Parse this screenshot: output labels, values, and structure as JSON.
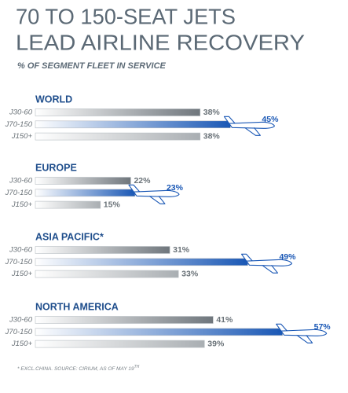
{
  "title": [
    "70 TO 150-SEAT JETS",
    "LEAD AIRLINE RECOVERY"
  ],
  "subtitle": "% OF SEGMENT FLEET IN SERVICE",
  "footnote": "* EXCL.CHINA. SOURCE: CIRIUM, AS OF MAY 19",
  "footnote_sup": "TH",
  "chart_data": [
    {
      "type": "bar",
      "title": "WORLD",
      "categories": [
        "J30-60",
        "J70-150",
        "J150+"
      ],
      "values": [
        38,
        45,
        38
      ],
      "value_labels": [
        "38%",
        "45%",
        "38%"
      ],
      "colors": [
        "#6f767c",
        "#1957b5",
        "#a9aeb2"
      ]
    },
    {
      "type": "bar",
      "title": "EUROPE",
      "categories": [
        "J30-60",
        "J70-150",
        "J150+"
      ],
      "values": [
        22,
        23,
        15
      ],
      "value_labels": [
        "22%",
        "23%",
        "15%"
      ],
      "colors": [
        "#6f767c",
        "#1957b5",
        "#a9aeb2"
      ]
    },
    {
      "type": "bar",
      "title": "ASIA PACIFIC*",
      "categories": [
        "J30-60",
        "J70-150",
        "J150+"
      ],
      "values": [
        31,
        49,
        33
      ],
      "value_labels": [
        "31%",
        "49%",
        "33%"
      ],
      "colors": [
        "#6f767c",
        "#1957b5",
        "#a9aeb2"
      ]
    },
    {
      "type": "bar",
      "title": "NORTH AMERICA",
      "categories": [
        "J30-60",
        "J70-150",
        "J150+"
      ],
      "values": [
        41,
        57,
        39
      ],
      "value_labels": [
        "41%",
        "57%",
        "39%"
      ],
      "colors": [
        "#6f767c",
        "#1957b5",
        "#a9aeb2"
      ]
    }
  ]
}
